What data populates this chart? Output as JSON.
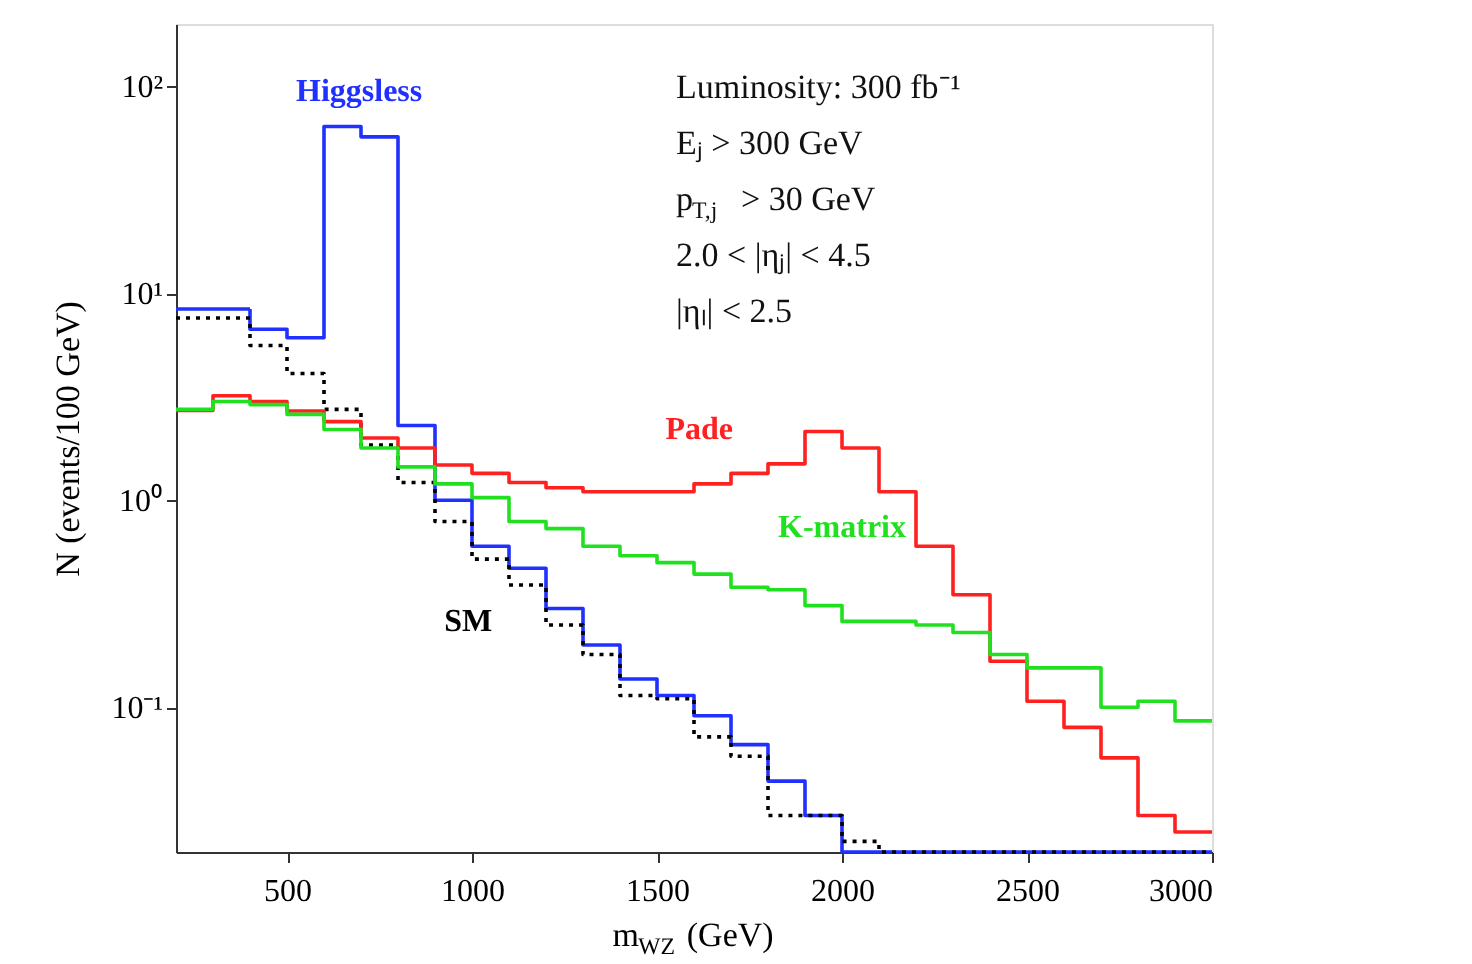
{
  "chart_data": {
    "type": "histogram",
    "xlabel": "m$_{WZ}$ (GeV)",
    "ylabel": "N (events/100 GeV)",
    "bins": [
      200,
      300,
      400,
      500,
      600,
      700,
      800,
      900,
      1000,
      1100,
      1200,
      1300,
      1400,
      1500,
      1600,
      1700,
      1800,
      1900,
      2000,
      2100,
      2200,
      2300,
      2400,
      2500,
      2600,
      2700,
      2800,
      2900,
      3000
    ],
    "series": [
      {
        "name": "Higgsless",
        "color": "#2030ff",
        "line_style": "solid",
        "values": [
          8.4,
          8.4,
          6.7,
          6.1,
          64,
          57,
          2.3,
          1.0,
          0.6,
          0.47,
          0.3,
          0.2,
          0.137,
          0.114,
          0.091,
          0.066,
          0.044,
          0.03,
          null,
          null,
          null,
          null,
          null,
          null,
          null,
          null,
          null,
          null
        ]
      },
      {
        "name": "SM",
        "color": "#000000",
        "line_style": "dotted",
        "values": [
          7.6,
          7.6,
          5.6,
          4.1,
          2.75,
          1.85,
          1.22,
          0.79,
          0.52,
          0.39,
          0.25,
          0.18,
          0.114,
          0.11,
          0.072,
          0.058,
          0.03,
          0.03,
          0.0225,
          null,
          null,
          null,
          null,
          null,
          null,
          null,
          null,
          null
        ]
      },
      {
        "name": "Pade",
        "color": "#ff2020",
        "line_style": "solid",
        "values": [
          2.72,
          3.2,
          3.0,
          2.7,
          2.4,
          2.0,
          1.79,
          1.48,
          1.35,
          1.22,
          1.15,
          1.1,
          1.1,
          1.1,
          1.2,
          1.35,
          1.5,
          2.15,
          1.79,
          1.1,
          0.6,
          0.35,
          0.167,
          0.107,
          0.08,
          0.057,
          0.03,
          0.025
        ]
      },
      {
        "name": "K-matrix",
        "color": "#20e020",
        "line_style": "solid",
        "values": [
          2.75,
          3.0,
          2.9,
          2.6,
          2.2,
          1.79,
          1.45,
          1.2,
          1.03,
          0.79,
          0.73,
          0.6,
          0.54,
          0.5,
          0.44,
          0.38,
          0.37,
          0.31,
          0.26,
          0.26,
          0.25,
          0.23,
          0.18,
          0.155,
          0.155,
          0.1,
          0.107,
          0.086
        ]
      }
    ],
    "xlim": [
      200,
      3000
    ],
    "xticks": [
      500,
      1000,
      1500,
      2000,
      2500,
      3000
    ],
    "ylim": [
      0.02,
      200
    ],
    "yticks": [
      {
        "value": 0.1,
        "label": "10⁻¹"
      },
      {
        "value": 1,
        "label": "10⁰"
      },
      {
        "value": 10,
        "label": "10¹"
      },
      {
        "value": 100,
        "label": "10²"
      }
    ],
    "log": "y",
    "grid": false,
    "legend": false,
    "annotations": [
      "Luminosity: 300 fb⁻¹",
      "Eⱼ > 300 GeV",
      "p$_{T,j}$ > 30 GeV",
      "2.0 < |ηⱼ| < 4.5",
      "|ηₗ| < 2.5"
    ]
  }
}
